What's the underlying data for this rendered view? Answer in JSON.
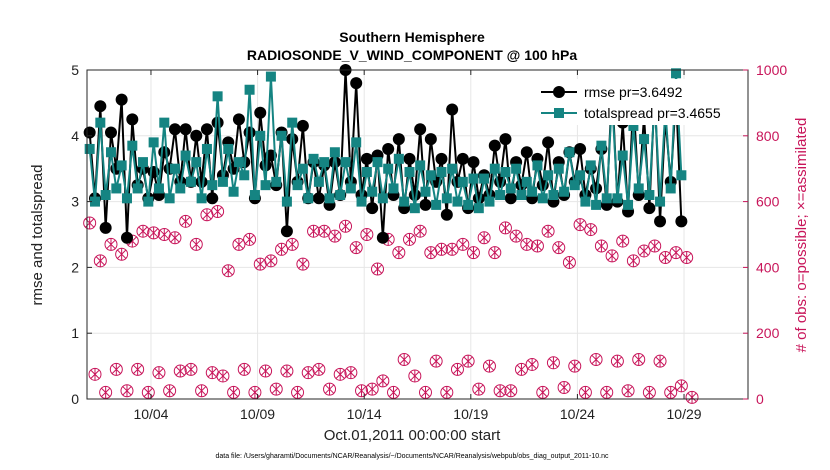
{
  "chart_data": {
    "type": "line",
    "title": "Southern Hemisphere",
    "subtitle": "RADIOSONDE_V_WIND_COMPONENT @ 100 hPa",
    "xlabel": "Oct.01,2011 00:00:00 start",
    "ylabel_left": "rmse and totalspread",
    "ylabel_right": "# of obs: o=possible; ×=assimilated",
    "footer": "data file: /Users/gharamti/Documents/NCAR/Reanalysis/~/Documents/NCAR/Reanalysis/webpub/obs_diag_output_2011-10.nc",
    "x_range_days": [
      1.0,
      32.0
    ],
    "x_ticks": [
      4,
      9,
      14,
      19,
      24,
      29
    ],
    "x_tick_labels": [
      "10/04",
      "10/09",
      "10/14",
      "10/19",
      "10/24",
      "10/29"
    ],
    "y_left_lim": [
      0,
      5
    ],
    "y_left_ticks": [
      0,
      1,
      2,
      3,
      4,
      5
    ],
    "y_right_lim": [
      0,
      1000
    ],
    "y_right_ticks": [
      0,
      200,
      400,
      600,
      800,
      1000
    ],
    "grid": true,
    "legend_position": "top-right",
    "colors": {
      "rmse": "#000000",
      "totalspread": "#158482",
      "obs": "#c8155a",
      "grid": "#e6e6e6"
    },
    "series": [
      {
        "name": "rmse pr=3.6492",
        "axis": "left",
        "values": [
          4.05,
          3.05,
          4.45,
          2.6,
          4.05,
          3.5,
          4.55,
          2.45,
          4.25,
          3.25,
          3.5,
          3.05,
          3.45,
          3.1,
          3.75,
          3.5,
          4.1,
          3.3,
          4.1,
          3.3,
          4.0,
          3.3,
          4.1,
          3.05,
          4.2,
          3.4,
          3.9,
          3.5,
          4.25,
          3.6,
          4.05,
          3.05,
          4.35,
          3.55,
          3.7,
          3.25,
          4.05,
          2.55,
          3.95,
          3.3,
          4.15,
          3.05,
          3.6,
          3.05,
          3.55,
          2.95,
          3.6,
          3.1,
          5.0,
          3.3,
          4.8,
          3.1,
          3.65,
          2.9,
          3.7,
          2.45,
          3.8,
          3.1,
          3.95,
          2.9,
          3.65,
          3.1,
          4.1,
          2.95,
          3.95,
          3.3,
          3.65,
          2.8,
          4.4,
          3.3,
          3.65,
          2.9,
          3.6,
          3.05,
          3.4,
          3.1,
          3.85,
          3.3,
          3.95,
          3.05,
          3.6,
          3.25,
          3.75,
          3.05,
          3.65,
          3.25,
          3.9,
          3.0,
          3.6,
          3.1,
          3.75,
          3.3,
          3.8,
          3.1,
          3.5,
          3.2,
          3.8,
          2.95,
          4.75,
          3.0,
          4.2,
          2.85,
          4.55,
          3.1,
          4.3,
          2.9,
          4.65,
          2.7,
          4.25,
          3.3,
          4.6,
          2.7
        ]
      },
      {
        "name": "totalspread pr=3.4655",
        "axis": "left",
        "values": [
          3.8,
          3.0,
          4.2,
          3.1,
          3.75,
          3.2,
          3.55,
          3.05,
          3.85,
          3.2,
          3.6,
          3.0,
          3.9,
          3.2,
          4.2,
          3.05,
          3.5,
          3.2,
          3.7,
          3.3,
          3.6,
          3.05,
          3.8,
          3.25,
          4.6,
          3.3,
          3.8,
          3.15,
          3.6,
          3.4,
          4.7,
          3.1,
          4.0,
          3.25,
          4.9,
          3.3,
          4.0,
          3.0,
          4.2,
          3.25,
          3.5,
          3.05,
          3.65,
          3.3,
          3.6,
          3.05,
          3.75,
          3.1,
          3.6,
          3.2,
          3.9,
          3.0,
          3.45,
          3.15,
          3.6,
          3.05,
          3.5,
          3.2,
          3.65,
          3.0,
          3.45,
          2.9,
          3.55,
          3.15,
          3.4,
          2.95,
          3.45,
          3.05,
          3.5,
          3.0,
          3.3,
          2.95,
          3.35,
          2.9,
          3.35,
          3.0,
          3.5,
          3.1,
          3.45,
          3.2,
          3.5,
          3.1,
          3.3,
          3.15,
          3.55,
          3.05,
          3.4,
          3.1,
          3.5,
          3.15,
          3.75,
          3.25,
          3.4,
          3.0,
          3.55,
          2.95,
          3.85,
          3.05,
          4.55,
          3.05,
          3.7,
          2.95,
          4.15,
          3.2,
          3.95,
          3.1,
          4.55,
          3.0,
          4.4,
          3.2,
          4.95,
          3.4
        ]
      },
      {
        "name": "# obs possible",
        "axis": "right",
        "marker": "circle",
        "values": [
          535,
          75,
          420,
          20,
          470,
          90,
          440,
          25,
          480,
          90,
          510,
          20,
          505,
          80,
          500,
          25,
          490,
          85,
          540,
          90,
          470,
          25,
          560,
          80,
          570,
          70,
          390,
          20,
          470,
          90,
          485,
          20,
          410,
          85,
          420,
          30,
          455,
          85,
          470,
          20,
          410,
          80,
          510,
          90,
          510,
          30,
          495,
          75,
          525,
          80,
          460,
          25,
          500,
          30,
          395,
          55,
          485,
          20,
          445,
          120,
          485,
          70,
          510,
          20,
          445,
          115,
          455,
          20,
          455,
          90,
          470,
          115,
          445,
          30,
          490,
          100,
          445,
          25,
          520,
          25,
          495,
          90,
          470,
          105,
          465,
          20,
          510,
          110,
          460,
          35,
          415,
          100,
          530,
          20,
          515,
          120,
          465,
          20,
          435,
          115,
          480,
          25,
          420,
          120,
          450,
          20,
          465,
          115,
          430,
          20,
          445,
          40,
          430,
          5
        ]
      },
      {
        "name": "# obs assimilated",
        "axis": "right",
        "marker": "cross",
        "values": [
          535,
          75,
          420,
          20,
          470,
          90,
          440,
          25,
          480,
          90,
          510,
          20,
          505,
          80,
          500,
          25,
          490,
          85,
          540,
          90,
          470,
          25,
          560,
          80,
          570,
          70,
          390,
          20,
          470,
          90,
          485,
          20,
          410,
          85,
          420,
          30,
          455,
          85,
          470,
          20,
          410,
          80,
          510,
          90,
          510,
          30,
          495,
          75,
          525,
          80,
          460,
          25,
          500,
          30,
          395,
          55,
          485,
          20,
          445,
          120,
          485,
          70,
          510,
          20,
          445,
          115,
          455,
          20,
          455,
          90,
          470,
          115,
          445,
          30,
          490,
          100,
          445,
          25,
          520,
          25,
          495,
          90,
          470,
          105,
          465,
          20,
          510,
          110,
          460,
          35,
          415,
          100,
          530,
          20,
          515,
          120,
          465,
          20,
          435,
          115,
          480,
          25,
          420,
          120,
          450,
          20,
          465,
          115,
          430,
          20,
          445,
          40,
          430,
          5
        ]
      }
    ]
  }
}
